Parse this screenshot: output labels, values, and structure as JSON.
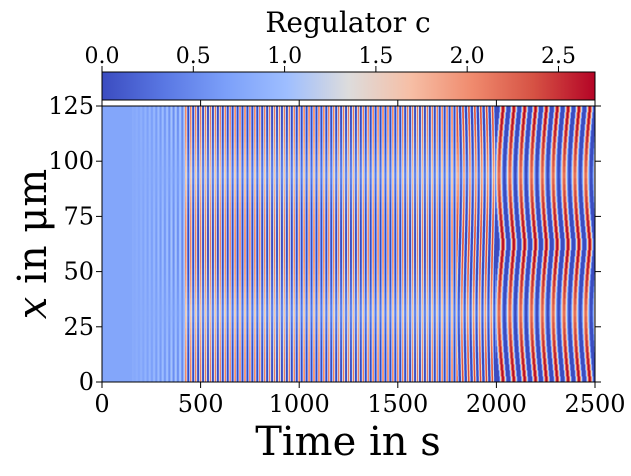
{
  "chart_data": {
    "type": "heatmap",
    "title": "",
    "xlabel": "Time in s",
    "ylabel_italic": "x",
    "ylabel_rest": " in μm",
    "xlim": [
      0,
      2500
    ],
    "ylim": [
      0,
      125
    ],
    "x_ticks": [
      0,
      500,
      1000,
      1500,
      2000,
      2500
    ],
    "y_ticks": [
      0,
      25,
      50,
      75,
      100,
      125
    ],
    "x_tick_labels": [
      "0",
      "500",
      "1000",
      "1500",
      "2000",
      "2500"
    ],
    "y_tick_labels": [
      "0",
      "25",
      "50",
      "75",
      "100",
      "125"
    ],
    "colorbar": {
      "label": "Regulator c",
      "range": [
        0.0,
        2.7
      ],
      "ticks": [
        0.0,
        0.5,
        1.0,
        1.5,
        2.0,
        2.5
      ],
      "tick_labels": [
        "0.0",
        "0.5",
        "1.0",
        "1.5",
        "2.0",
        "2.5"
      ],
      "colormap": "coolwarm",
      "position": "top"
    },
    "field_description_values": {
      "baseline_value": 0.9,
      "regimes": [
        {
          "t_start": 0,
          "t_end": 150,
          "pattern": "uniform",
          "value": 0.75
        },
        {
          "t_start": 150,
          "t_end": 420,
          "pattern": "weak fast oscillation",
          "amplitude": 0.3
        },
        {
          "t_start": 420,
          "t_end": 1800,
          "pattern": "fast standing oscillation",
          "period_s": 25,
          "amplitude": 1.1
        },
        {
          "t_start": 1800,
          "t_end": 2000,
          "pattern": "transition",
          "amplitude": 1.4
        },
        {
          "t_start": 2000,
          "t_end": 2500,
          "pattern": "slow traveling waves",
          "period_s": 55,
          "amplitude": 1.8
        }
      ]
    }
  }
}
